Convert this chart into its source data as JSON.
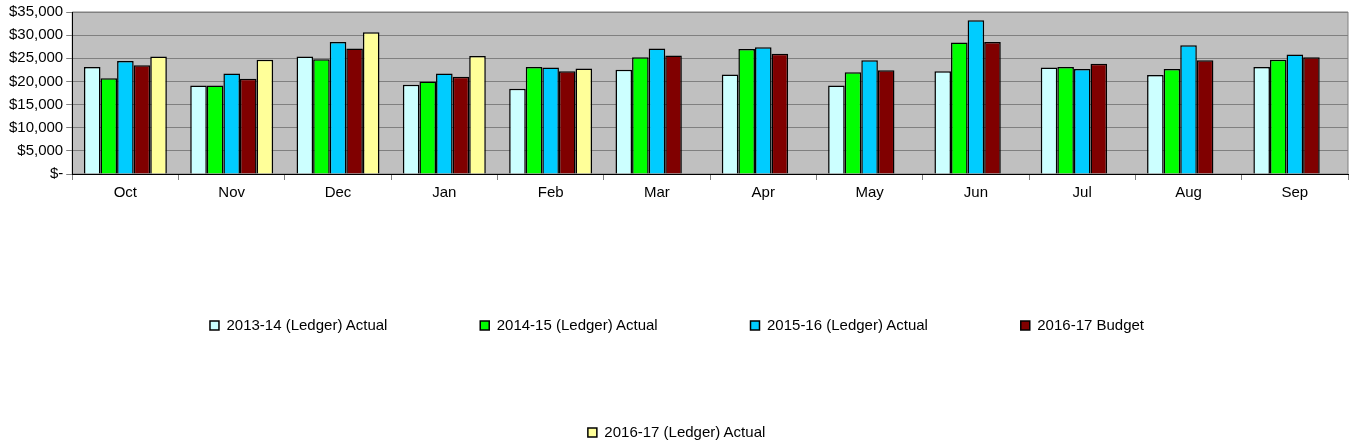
{
  "chart_data": {
    "type": "bar",
    "categories": [
      "Oct",
      "Nov",
      "Dec",
      "Jan",
      "Feb",
      "Mar",
      "Apr",
      "May",
      "Jun",
      "Jul",
      "Aug",
      "Sep"
    ],
    "series": [
      {
        "name": "2013-14 (Ledger) Actual",
        "color": "#ccffff",
        "values": [
          23100,
          19100,
          25400,
          19300,
          18400,
          22500,
          21500,
          19100,
          22200,
          23000,
          21400,
          23100
        ]
      },
      {
        "name": "2014-15 (Ledger) Actual",
        "color": "#00ff00",
        "values": [
          20700,
          19100,
          24800,
          20000,
          23100,
          25200,
          27000,
          22000,
          28400,
          23100,
          22700,
          24700
        ]
      },
      {
        "name": "2015-16 (Ledger) Actual",
        "color": "#00ccff",
        "values": [
          24400,
          21700,
          28500,
          21700,
          23000,
          27100,
          27400,
          24600,
          33200,
          22700,
          27800,
          25800
        ]
      },
      {
        "name": "2016-17 Budget",
        "color": "#800000",
        "values": [
          23500,
          20600,
          27100,
          21000,
          22200,
          25600,
          26000,
          22400,
          28500,
          23800,
          24600,
          25200
        ]
      },
      {
        "name": "2016-17 (Ledger) Actual",
        "color": "#ffff99",
        "values": [
          25400,
          24700,
          30600,
          25500,
          22800,
          null,
          null,
          null,
          null,
          null,
          null,
          null
        ]
      }
    ],
    "ylim": [
      0,
      35000
    ],
    "yticks": [
      {
        "value": 0,
        "label": "$-"
      },
      {
        "value": 5000,
        "label": "$5,000"
      },
      {
        "value": 10000,
        "label": "$10,000"
      },
      {
        "value": 15000,
        "label": "$15,000"
      },
      {
        "value": 20000,
        "label": "$20,000"
      },
      {
        "value": 25000,
        "label": "$25,000"
      },
      {
        "value": 30000,
        "label": "$30,000"
      },
      {
        "value": 35000,
        "label": "$35,000"
      }
    ],
    "grid": "y",
    "legend": "bottom"
  }
}
